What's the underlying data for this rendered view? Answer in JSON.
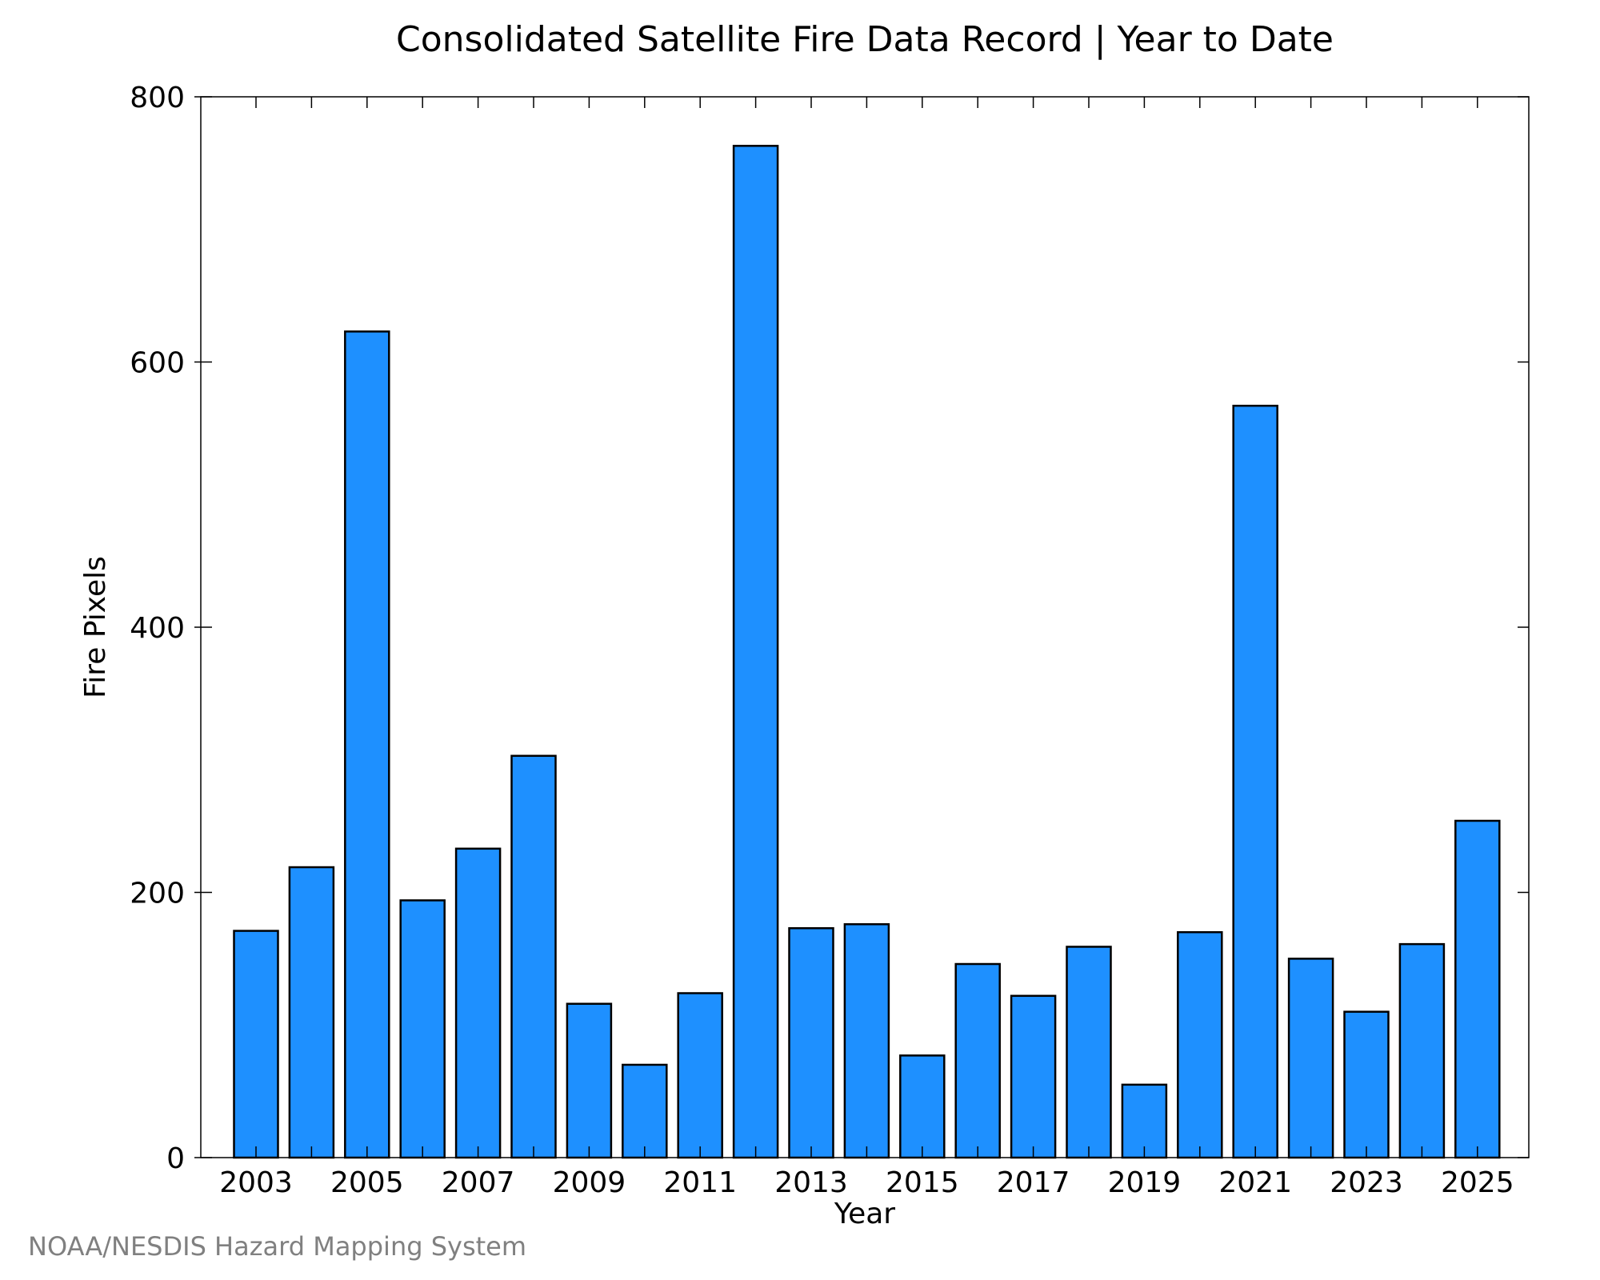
{
  "chart_data": {
    "type": "bar",
    "title": "Consolidated Satellite Fire Data Record | Year to Date",
    "xlabel": "Year",
    "ylabel": "Fire Pixels",
    "categories": [
      2003,
      2004,
      2005,
      2006,
      2007,
      2008,
      2009,
      2010,
      2011,
      2012,
      2013,
      2014,
      2015,
      2016,
      2017,
      2018,
      2019,
      2020,
      2021,
      2022,
      2023,
      2024,
      2025
    ],
    "values": [
      171,
      219,
      623,
      194,
      233,
      303,
      116,
      70,
      124,
      763,
      173,
      176,
      77,
      146,
      122,
      159,
      55,
      170,
      567,
      150,
      110,
      161,
      254
    ],
    "x_tick_labels": [
      "2003",
      "2005",
      "2007",
      "2009",
      "2011",
      "2013",
      "2015",
      "2017",
      "2019",
      "2021",
      "2023",
      "2025"
    ],
    "y_tick_labels": [
      "0",
      "200",
      "400",
      "600",
      "800"
    ],
    "ylim": [
      0,
      800
    ],
    "grid": false,
    "legend": "none",
    "bar_color": "#1e90ff",
    "bar_edge_color": "#000000"
  },
  "footer": {
    "source": "NOAA/NESDIS Hazard Mapping System"
  }
}
